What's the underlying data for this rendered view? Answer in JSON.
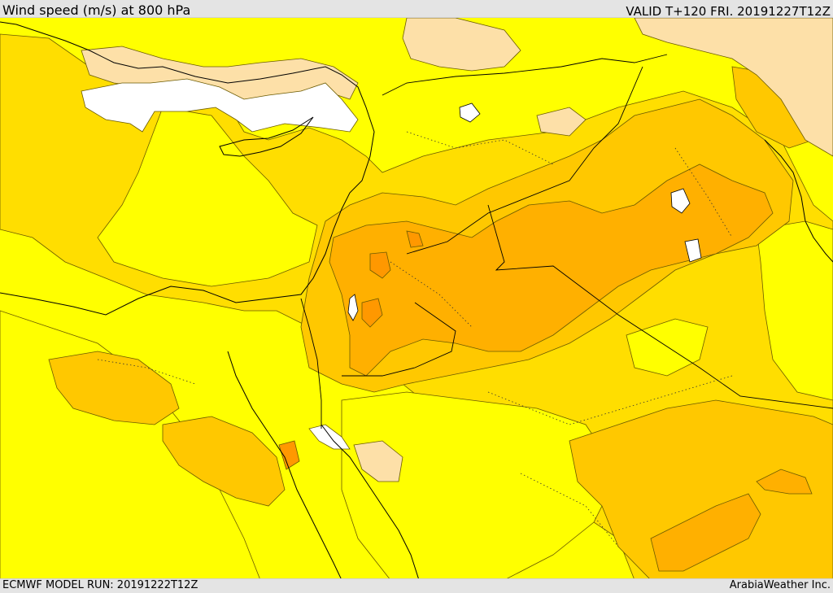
{
  "header": {
    "title": "Wind speed (m/s) at 800 hPa",
    "valid": "VALID T+120 FRI. 20191227T12Z"
  },
  "footer": {
    "model_run": "ECMWF MODEL RUN: 20191222T12Z",
    "credit": "ArabiaWeather Inc."
  },
  "colors": {
    "band_1": "#ffffff",
    "band_2": "#fde0a8",
    "band_3": "#ffff00",
    "band_4": "#ffde00",
    "band_5": "#ffc800",
    "band_6": "#ffb000",
    "band_7": "#ff9800",
    "coast": "#000000",
    "contour": "#6a5a00"
  }
}
